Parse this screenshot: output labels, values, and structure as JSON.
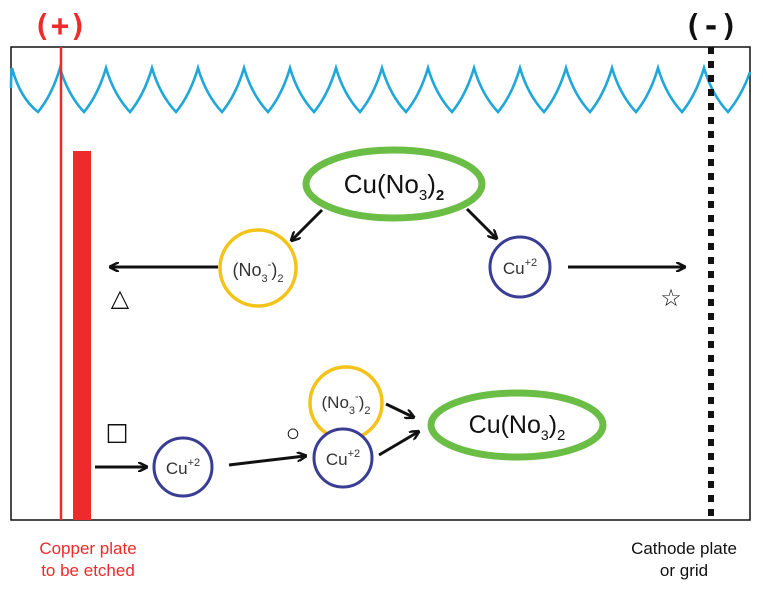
{
  "electrodes": {
    "anode_sign": "(+)",
    "cathode_sign": "(-)",
    "anode_label_line1": "Copper plate",
    "anode_label_line2": "to be etched",
    "cathode_label_line1": "Cathode plate",
    "cathode_label_line2": "or grid"
  },
  "molecules": {
    "top_salt": {
      "base": "Cu(No",
      "sub": "3",
      "close": ")",
      "sub2": "2"
    },
    "top_nitrate": {
      "open": "(No",
      "sub": "3",
      "sup": "-",
      "close": ")",
      "sub2": "2"
    },
    "top_copper_ion": {
      "base": "Cu",
      "sup": "+2"
    },
    "bottom_copper_ion_1": {
      "base": "Cu",
      "sup": "+2"
    },
    "bottom_copper_ion_2": {
      "base": "Cu",
      "sup": "+2"
    },
    "bottom_nitrate": {
      "open": "(No",
      "sub": "3",
      "sup": "-",
      "close": ")",
      "sub2": "2"
    },
    "bottom_salt": {
      "base": "Cu(No",
      "sub": "3",
      "close": ")",
      "sub2": "2"
    }
  },
  "markers": {
    "triangle": "△",
    "star": "☆",
    "square": "☐",
    "circle": "○"
  },
  "colors": {
    "anode": "#ee2a2a",
    "water": "#1ea7d8",
    "salt_ring": "#6abd45",
    "nitrate_ring": "#f3c319",
    "copper_ring": "#3a3d94",
    "ink": "#111111"
  }
}
